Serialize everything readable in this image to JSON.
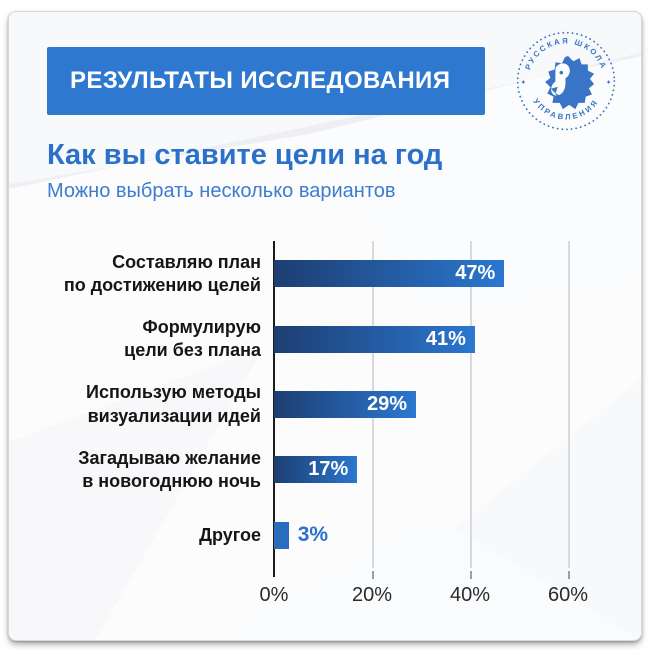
{
  "banner": {
    "label": "РЕЗУЛЬТАТЫ ИССЛЕДОВАНИЯ",
    "bg_color": "#2e78d0",
    "text_color": "#ffffff"
  },
  "logo": {
    "arc_top": "РУССКАЯ ШКОЛА",
    "arc_bottom": "УПРАВЛЕНИЯ",
    "star": "✦",
    "color": "#3974c6"
  },
  "question": {
    "title": "Как вы ставите цели на год",
    "subtitle": "Можно выбрать несколько вариантов"
  },
  "chart_data": {
    "type": "bar",
    "orientation": "horizontal",
    "title": "Как вы ставите цели на год",
    "subtitle": "Можно выбрать несколько вариантов",
    "categories": [
      "Составляю план по достижению целей",
      "Формулирую цели без плана",
      "Использую методы визуализации идей",
      "Загадываю желание в новогоднюю ночь",
      "Другое"
    ],
    "category_lines": [
      [
        "Составляю план",
        "по достижению целей"
      ],
      [
        "Формулирую",
        "цели без плана"
      ],
      [
        "Использую методы",
        "визуализации идей"
      ],
      [
        "Загадываю желание",
        "в новогоднюю ночь"
      ],
      [
        "Другое"
      ]
    ],
    "values": [
      47,
      41,
      29,
      17,
      3
    ],
    "value_labels": [
      "47%",
      "41%",
      "29%",
      "17%",
      "3%"
    ],
    "xlabel": "",
    "ylabel": "",
    "xlim": [
      0,
      60
    ],
    "x_ticks": [
      {
        "value": 0,
        "label": "0%"
      },
      {
        "value": 20,
        "label": "20%"
      },
      {
        "value": 40,
        "label": "40%"
      },
      {
        "value": 60,
        "label": "60%"
      }
    ],
    "grid": true,
    "legend": false,
    "bar_gradient_from": "#1d3e72",
    "bar_gradient_to": "#2b77d0",
    "small_bar_color": "#2a6cbe",
    "value_inside_color": "#ffffff",
    "value_outside_color": "#2b70c9",
    "inside_min_value": 10
  }
}
